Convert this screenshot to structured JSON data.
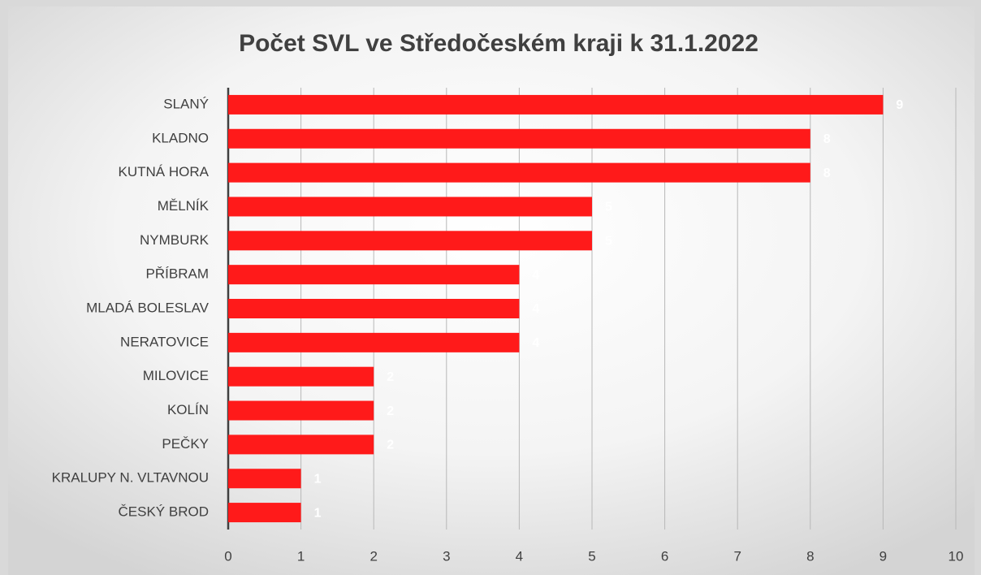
{
  "chart_data": {
    "type": "bar",
    "orientation": "horizontal",
    "title": "Počet SVL ve Středočeském kraji k 31.1.2022",
    "categories": [
      "SLANÝ",
      "KLADNO",
      "KUTNÁ HORA",
      "MĚLNÍK",
      "NYMBURK",
      "PŘÍBRAM",
      "MLADÁ BOLESLAV",
      "NERATOVICE",
      "MILOVICE",
      "KOLÍN",
      "PEČKY",
      "KRALUPY N. VLTAVNOU",
      "ČESKÝ BROD"
    ],
    "values": [
      9,
      8,
      8,
      5,
      5,
      4,
      4,
      4,
      2,
      2,
      2,
      1,
      1
    ],
    "color": "#ff1a1a",
    "xlim": [
      0,
      10
    ],
    "xticks": [
      0,
      1,
      2,
      3,
      4,
      5,
      6,
      7,
      8,
      9,
      10
    ],
    "grid": true
  }
}
